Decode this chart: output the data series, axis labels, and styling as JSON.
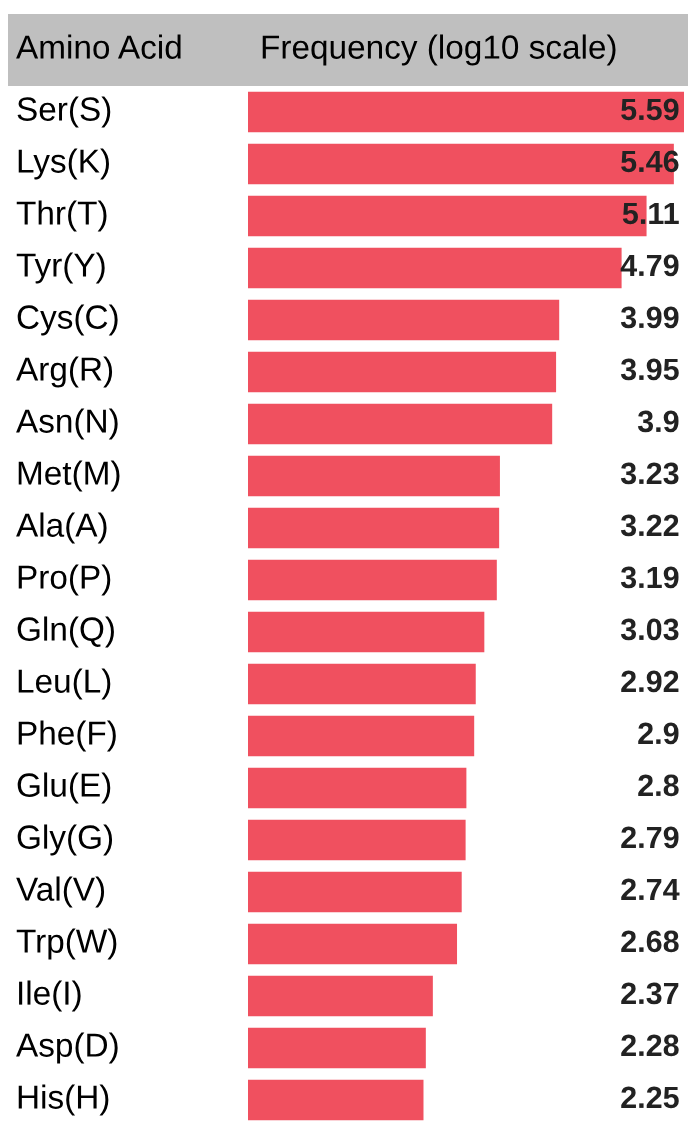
{
  "chart_data": {
    "type": "bar",
    "orientation": "horizontal",
    "ylabel": "Amino Acid",
    "xlabel": "Frequency (log10 scale)",
    "categories": [
      "Ser(S)",
      "Lys(K)",
      "Thr(T)",
      "Tyr(Y)",
      "Cys(C)",
      "Arg(R)",
      "Asn(N)",
      "Met(M)",
      "Ala(A)",
      "Pro(P)",
      "Gln(Q)",
      "Leu(L)",
      "Phe(F)",
      "Glu(E)",
      "Gly(G)",
      "Val(V)",
      "Trp(W)",
      "Ile(I)",
      "Asp(D)",
      "His(H)"
    ],
    "values": [
      5.59,
      5.46,
      5.11,
      4.79,
      3.99,
      3.95,
      3.9,
      3.23,
      3.22,
      3.19,
      3.03,
      2.92,
      2.9,
      2.8,
      2.79,
      2.74,
      2.68,
      2.37,
      2.28,
      2.25
    ],
    "color": "#f0505f",
    "data_labels": true
  }
}
